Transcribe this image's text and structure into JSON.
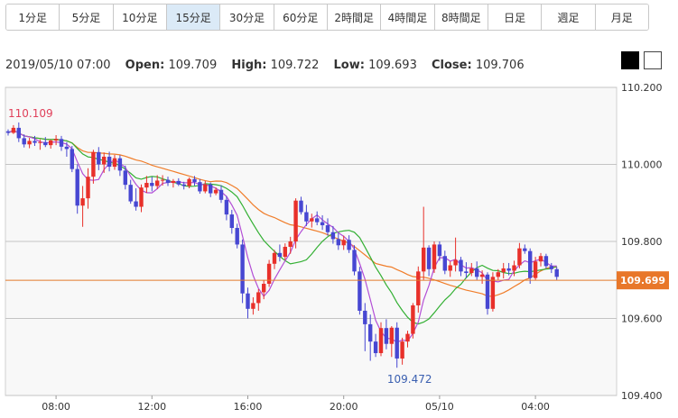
{
  "timeframes": [
    {
      "label": "1分足",
      "active": false
    },
    {
      "label": "5分足",
      "active": false
    },
    {
      "label": "10分足",
      "active": false
    },
    {
      "label": "15分足",
      "active": true
    },
    {
      "label": "30分足",
      "active": false
    },
    {
      "label": "60分足",
      "active": false
    },
    {
      "label": "2時間足",
      "active": false
    },
    {
      "label": "4時間足",
      "active": false
    },
    {
      "label": "8時間足",
      "active": false
    },
    {
      "label": "日足",
      "active": false
    },
    {
      "label": "週足",
      "active": false
    },
    {
      "label": "月足",
      "active": false
    }
  ],
  "ohlc": {
    "datetime": "2019/05/10 07:00",
    "open_label": "Open:",
    "open": "109.709",
    "high_label": "High:",
    "high": "109.722",
    "low_label": "Low:",
    "low": "109.693",
    "close_label": "Close:",
    "close": "109.706"
  },
  "chart_data": {
    "type": "candlestick",
    "ylim": [
      109.4,
      110.2
    ],
    "y_ticks": [
      "110.200",
      "110.000",
      "109.800",
      "109.600",
      "109.400"
    ],
    "x_ticks": [
      "08:00",
      "12:00",
      "16:00",
      "20:00",
      "05/10",
      "04:00"
    ],
    "current_price": "109.699",
    "annotations": {
      "high": "110.109",
      "low": "109.472"
    },
    "colors": {
      "up": "#e8302a",
      "down": "#4747d2",
      "ma_short": "#b34fd6",
      "ma_mid": "#33b033",
      "ma_long": "#f07d2a",
      "price_line": "#e37a2b"
    },
    "candles": [
      [
        110.086,
        110.091,
        110.075,
        110.082
      ],
      [
        110.082,
        110.102,
        110.079,
        110.095
      ],
      [
        110.095,
        110.109,
        110.058,
        110.068
      ],
      [
        110.068,
        110.078,
        110.044,
        110.052
      ],
      [
        110.052,
        110.069,
        110.042,
        110.061
      ],
      [
        110.061,
        110.074,
        110.048,
        110.056
      ],
      [
        110.056,
        110.065,
        110.038,
        110.058
      ],
      [
        110.058,
        110.071,
        110.045,
        110.05
      ],
      [
        110.05,
        110.064,
        110.041,
        110.062
      ],
      [
        110.062,
        110.076,
        110.05,
        110.066
      ],
      [
        110.066,
        110.074,
        110.035,
        110.046
      ],
      [
        110.046,
        110.058,
        110.02,
        110.04
      ],
      [
        110.04,
        110.048,
        109.98,
        109.988
      ],
      [
        109.988,
        110.0,
        109.872,
        109.893
      ],
      [
        109.893,
        109.944,
        109.838,
        109.912
      ],
      [
        109.912,
        109.99,
        109.885,
        109.968
      ],
      [
        109.968,
        110.038,
        109.95,
        110.032
      ],
      [
        110.032,
        110.045,
        109.985,
        110.0
      ],
      [
        110.0,
        110.031,
        109.978,
        110.02
      ],
      [
        110.02,
        110.033,
        109.982,
        109.994
      ],
      [
        109.994,
        110.025,
        109.986,
        110.016
      ],
      [
        110.016,
        110.024,
        109.97,
        109.984
      ],
      [
        109.984,
        109.997,
        109.935,
        109.947
      ],
      [
        109.947,
        109.96,
        109.898,
        109.904
      ],
      [
        109.904,
        109.938,
        109.88,
        109.89
      ],
      [
        109.89,
        109.948,
        109.876,
        109.94
      ],
      [
        109.94,
        109.97,
        109.926,
        109.952
      ],
      [
        109.952,
        109.968,
        109.93,
        109.944
      ],
      [
        109.944,
        109.972,
        109.936,
        109.958
      ],
      [
        109.958,
        109.972,
        109.945,
        109.96
      ],
      [
        109.96,
        109.968,
        109.944,
        109.952
      ],
      [
        109.952,
        109.962,
        109.94,
        109.957
      ],
      [
        109.957,
        109.964,
        109.944,
        109.948
      ],
      [
        109.948,
        109.955,
        109.935,
        109.944
      ],
      [
        109.944,
        109.966,
        109.938,
        109.962
      ],
      [
        109.962,
        109.97,
        109.945,
        109.954
      ],
      [
        109.954,
        109.962,
        109.924,
        109.93
      ],
      [
        109.93,
        109.957,
        109.925,
        109.948
      ],
      [
        109.948,
        109.953,
        109.915,
        109.925
      ],
      [
        109.925,
        109.94,
        109.92,
        109.934
      ],
      [
        109.934,
        109.946,
        109.9,
        109.908
      ],
      [
        109.908,
        109.918,
        109.855,
        109.87
      ],
      [
        109.87,
        109.882,
        109.82,
        109.835
      ],
      [
        109.835,
        109.846,
        109.782,
        109.792
      ],
      [
        109.792,
        109.805,
        109.64,
        109.665
      ],
      [
        109.665,
        109.68,
        109.6,
        109.625
      ],
      [
        109.625,
        109.655,
        109.61,
        109.64
      ],
      [
        109.64,
        109.676,
        109.62,
        109.668
      ],
      [
        109.668,
        109.7,
        109.65,
        109.69
      ],
      [
        109.69,
        109.752,
        109.682,
        109.742
      ],
      [
        109.742,
        109.778,
        109.728,
        109.77
      ],
      [
        109.77,
        109.792,
        109.748,
        109.76
      ],
      [
        109.76,
        109.795,
        109.752,
        109.786
      ],
      [
        109.786,
        109.812,
        109.768,
        109.8
      ],
      [
        109.8,
        109.912,
        109.782,
        109.906
      ],
      [
        109.906,
        109.916,
        109.87,
        109.876
      ],
      [
        109.876,
        109.895,
        109.84,
        109.852
      ],
      [
        109.852,
        109.872,
        109.836,
        109.86
      ],
      [
        109.86,
        109.878,
        109.842,
        109.85
      ],
      [
        109.85,
        109.868,
        109.83,
        109.842
      ],
      [
        109.842,
        109.86,
        109.815,
        109.824
      ],
      [
        109.824,
        109.84,
        109.794,
        109.806
      ],
      [
        109.806,
        109.822,
        109.778,
        109.79
      ],
      [
        109.79,
        109.815,
        109.778,
        109.804
      ],
      [
        109.804,
        109.816,
        109.77,
        109.778
      ],
      [
        109.778,
        109.79,
        109.712,
        109.722
      ],
      [
        109.722,
        109.734,
        109.61,
        109.62
      ],
      [
        109.62,
        109.64,
        109.515,
        109.585
      ],
      [
        109.585,
        109.61,
        109.49,
        109.54
      ],
      [
        109.54,
        109.56,
        109.5,
        109.51
      ],
      [
        109.51,
        109.59,
        109.502,
        109.575
      ],
      [
        109.575,
        109.598,
        109.52,
        109.534
      ],
      [
        109.534,
        109.58,
        109.5,
        109.576
      ],
      [
        109.576,
        109.59,
        109.472,
        109.496
      ],
      [
        109.496,
        109.55,
        109.48,
        109.54
      ],
      [
        109.54,
        109.568,
        109.525,
        109.56
      ],
      [
        109.56,
        109.64,
        109.548,
        109.634
      ],
      [
        109.634,
        109.735,
        109.615,
        109.722
      ],
      [
        109.722,
        109.89,
        109.7,
        109.784
      ],
      [
        109.784,
        109.79,
        109.71,
        109.728
      ],
      [
        109.728,
        109.8,
        109.718,
        109.792
      ],
      [
        109.792,
        109.8,
        109.75,
        109.762
      ],
      [
        109.762,
        109.776,
        109.715,
        109.724
      ],
      [
        109.724,
        109.748,
        109.708,
        109.738
      ],
      [
        109.738,
        109.81,
        109.722,
        109.752
      ],
      [
        109.752,
        109.76,
        109.71,
        109.722
      ],
      [
        109.722,
        109.746,
        109.705,
        109.718
      ],
      [
        109.718,
        109.744,
        109.71,
        109.73
      ],
      [
        109.73,
        109.748,
        109.7,
        109.708
      ],
      [
        109.708,
        109.725,
        109.69,
        109.714
      ],
      [
        109.714,
        109.72,
        109.61,
        109.625
      ],
      [
        109.625,
        109.72,
        109.618,
        109.708
      ],
      [
        109.708,
        109.728,
        109.7,
        109.72
      ],
      [
        109.72,
        109.744,
        109.704,
        109.73
      ],
      [
        109.73,
        109.744,
        109.712,
        109.724
      ],
      [
        109.724,
        109.75,
        109.71,
        109.738
      ],
      [
        109.738,
        109.796,
        109.73,
        109.782
      ],
      [
        109.782,
        109.792,
        109.768,
        109.775
      ],
      [
        109.775,
        109.782,
        109.69,
        109.705
      ],
      [
        109.705,
        109.76,
        109.7,
        109.748
      ],
      [
        109.748,
        109.77,
        109.735,
        109.762
      ],
      [
        109.762,
        109.768,
        109.73,
        109.736
      ],
      [
        109.736,
        109.744,
        109.718,
        109.728
      ],
      [
        109.728,
        109.734,
        109.7,
        109.708
      ]
    ]
  }
}
